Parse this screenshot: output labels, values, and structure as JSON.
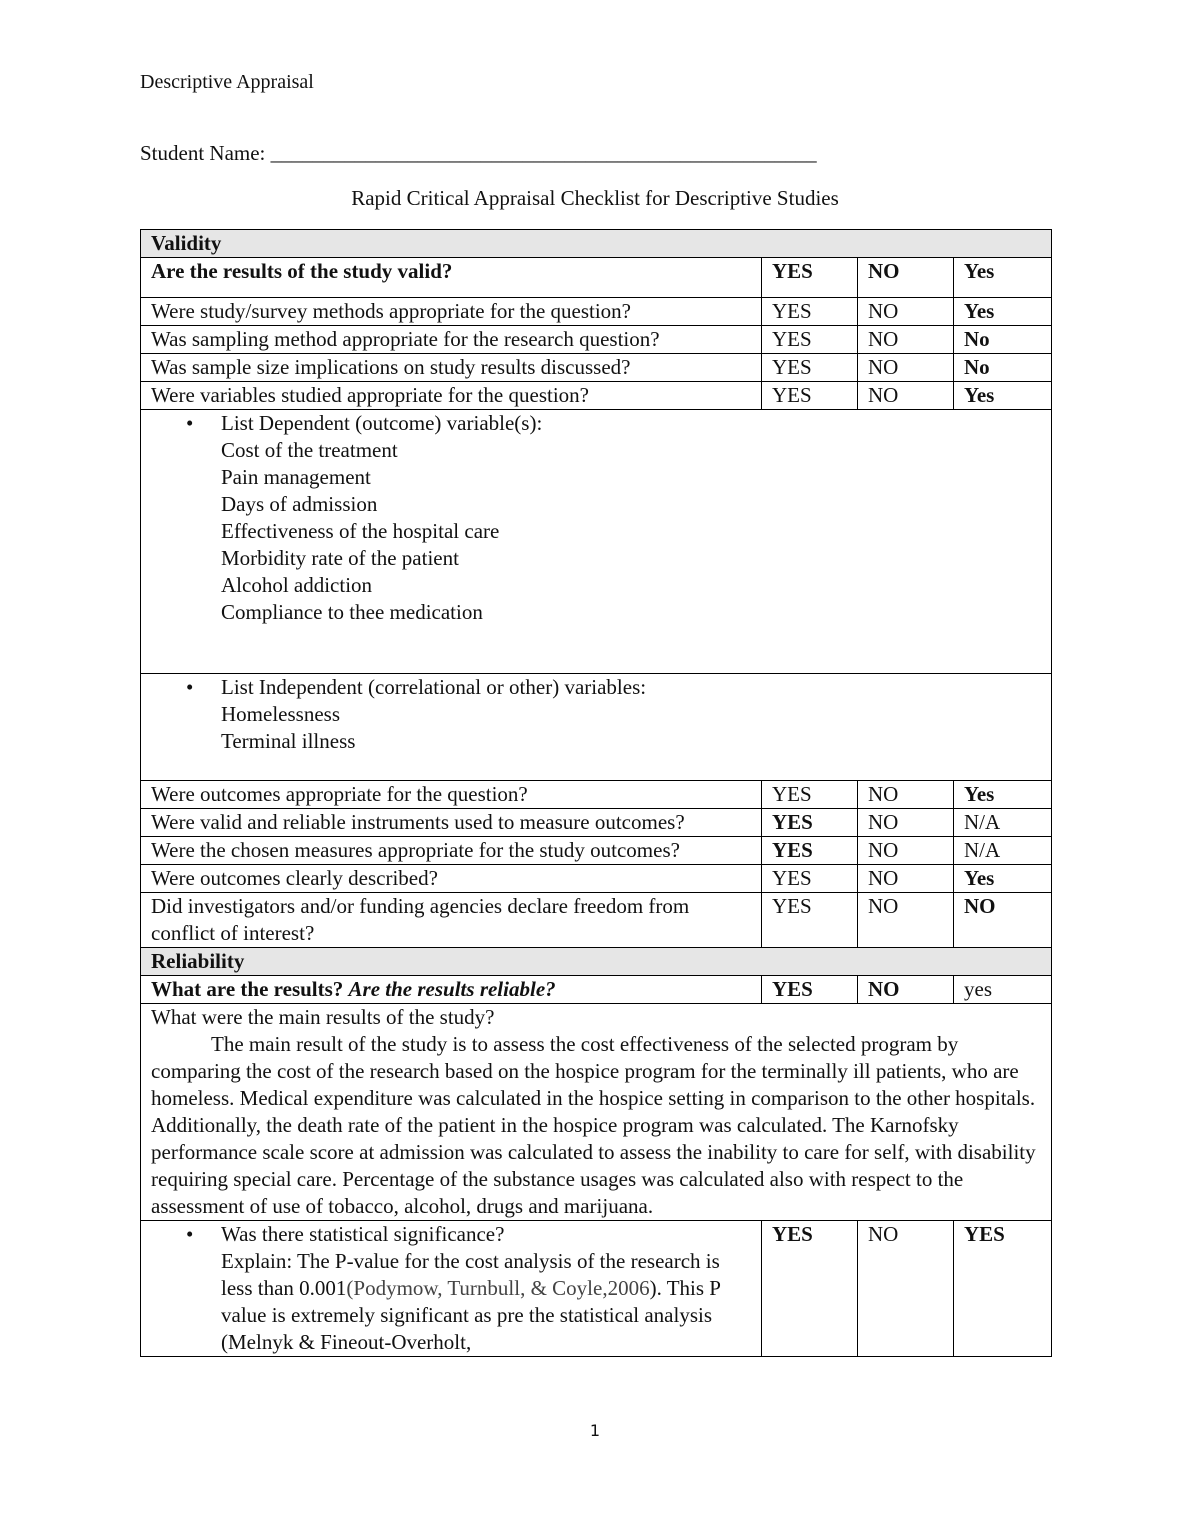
{
  "header": "Descriptive Appraisal",
  "student_name_label": "Student Name: ",
  "student_name_blank": "____________________________________________________",
  "title": "Rapid Critical Appraisal Checklist for Descriptive Studies",
  "validity": {
    "section": "Validity",
    "question": "Are the results of the study valid?",
    "col_yes": "YES",
    "col_no": "NO",
    "col_answer": "Yes",
    "rows": [
      {
        "q": "Were study/survey methods appropriate for the question?",
        "yes": "YES",
        "no": "NO",
        "answer": "Yes"
      },
      {
        "q": "Was sampling method appropriate for the research question?",
        "yes": "YES",
        "no": "NO",
        "answer": "No"
      },
      {
        "q": "Was sample size implications on study results discussed?",
        "yes": "YES",
        "no": "NO",
        "answer": "No"
      },
      {
        "q": "Were variables studied appropriate for the question?",
        "yes": "YES",
        "no": "NO",
        "answer": "Yes"
      }
    ],
    "dependent": {
      "label": "List Dependent (outcome) variable(s):",
      "items": [
        "Cost of the treatment",
        "Pain management",
        "Days of admission",
        "Effectiveness of the hospital care",
        "Morbidity rate of the patient",
        "Alcohol addiction",
        "Compliance to thee medication"
      ]
    },
    "independent": {
      "label": "List Independent (correlational or other) variables:",
      "items": [
        "Homelessness",
        "Terminal illness"
      ]
    },
    "rows2": [
      {
        "q": "Were outcomes appropriate for the question?",
        "yes": "YES",
        "no": "NO",
        "answer": "Yes"
      },
      {
        "q": "Were valid and reliable instruments used to measure outcomes?",
        "yes": "YES",
        "no": "NO",
        "answer": "N/A"
      },
      {
        "q": "Were the chosen measures appropriate for the study outcomes?",
        "yes": "YES",
        "no": "NO",
        "answer": "N/A"
      },
      {
        "q": "Were outcomes clearly described?",
        "yes": "YES",
        "no": "NO",
        "answer": "Yes"
      },
      {
        "q": "Did investigators and/or funding agencies declare freedom from conflict of interest?",
        "yes": "YES",
        "no": "NO",
        "answer": "NO"
      }
    ]
  },
  "reliability": {
    "section": "Reliability",
    "question_a": "What are the results? ",
    "question_b": "Are the results reliable?",
    "col_yes": "YES",
    "col_no": "NO",
    "col_answer": "yes",
    "main_results_q": "What were the main results of the study?",
    "main_results": "The main result of the study is to assess the cost effectiveness of the selected program by comparing the cost of the research based on the hospice program for the terminally ill patients, who are homeless. Medical expenditure was calculated in the hospice setting in comparison to the other hospitals. Additionally, the death rate of the patient in the hospice program was calculated. The Karnofsky performance scale score at admission was calculated to assess the inability to care for self, with disability requiring special care. Percentage of the substance usages was calculated also with respect to the assessment of use of tobacco, alcohol, drugs and marijuana.",
    "significance": {
      "q": "Was there statistical significance?",
      "explain_a": "Explain:  The P-value for the cost analysis of the research is less than 0.001",
      "citation": "(Podymow, Turnbull, & Coyle,2006",
      "explain_b": "). This P value is extremely significant as pre the statistical analysis (Melnyk & Fineout-Overholt,",
      "yes": "YES",
      "no": "NO",
      "answer": "YES"
    }
  },
  "page_number": "1"
}
